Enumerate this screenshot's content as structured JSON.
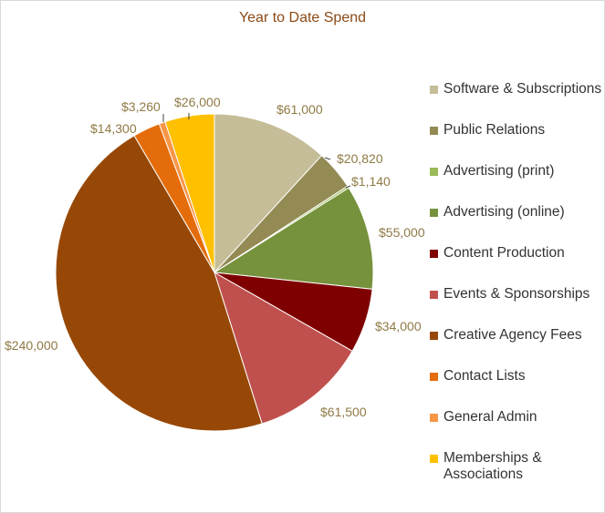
{
  "chart_data": {
    "type": "pie",
    "title": "Year to Date Spend",
    "legend_position": "right",
    "slices": [
      {
        "label": "Software & Subscriptions",
        "value": 61000,
        "value_label": "$61,000",
        "color": "#c4bd97"
      },
      {
        "label": "Public Relations",
        "value": 20820,
        "value_label": "$20,820",
        "color": "#948a54"
      },
      {
        "label": "Advertising (print)",
        "value": 1140,
        "value_label": "$1,140",
        "color": "#9bbb59"
      },
      {
        "label": "Advertising (online)",
        "value": 55000,
        "value_label": "$55,000",
        "color": "#76923c"
      },
      {
        "label": "Content Production",
        "value": 34000,
        "value_label": "$34,000",
        "color": "#7f0000"
      },
      {
        "label": "Events & Sponsorships",
        "value": 61500,
        "value_label": "$61,500",
        "color": "#c0504d"
      },
      {
        "label": "Creative Agency Fees",
        "value": 240000,
        "value_label": "$240,000",
        "color": "#974806"
      },
      {
        "label": "Contact Lists",
        "value": 14300,
        "value_label": "$14,300",
        "color": "#e46c0a"
      },
      {
        "label": "General Admin",
        "value": 3260,
        "value_label": "$3,260",
        "color": "#f79646"
      },
      {
        "label": "Memberships & Associations",
        "value": 26000,
        "value_label": "$26,000",
        "color": "#ffc000"
      }
    ]
  }
}
